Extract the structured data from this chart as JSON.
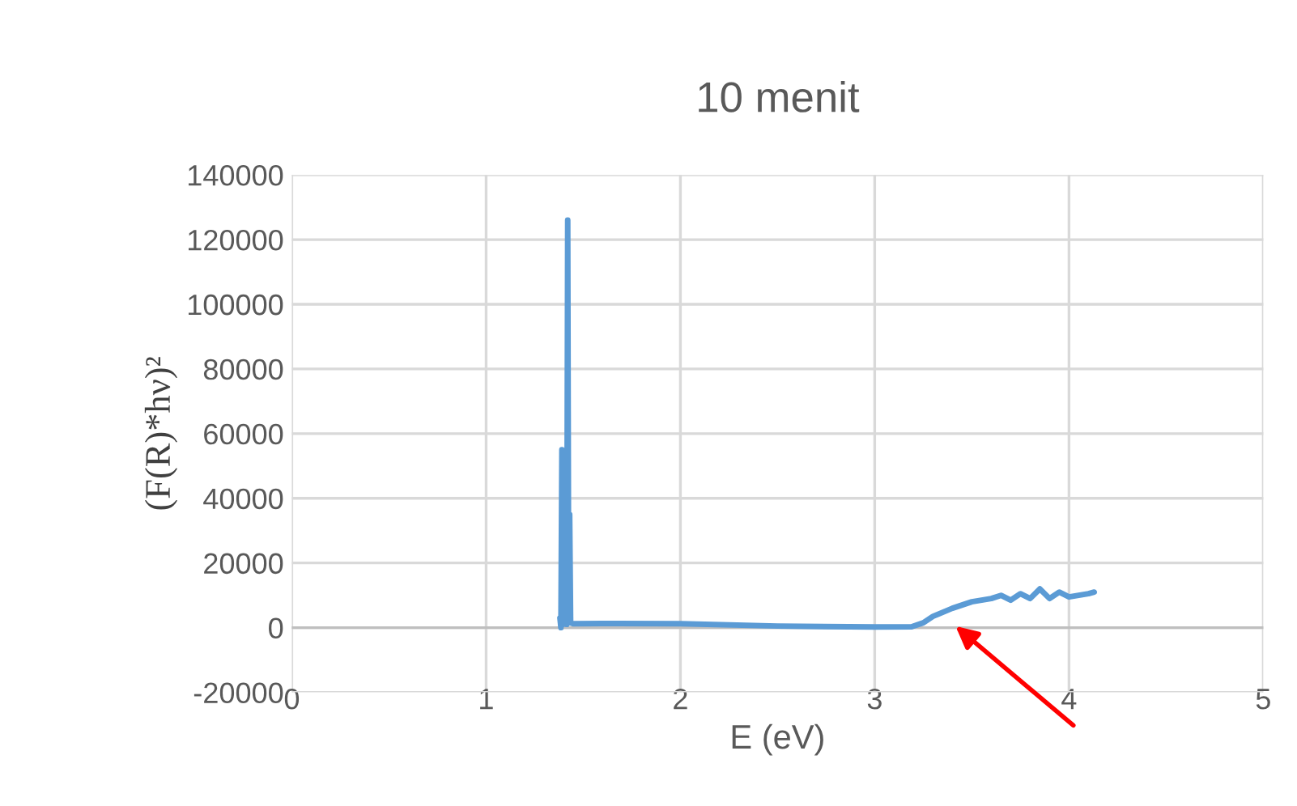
{
  "chart_data": {
    "type": "line",
    "title": "10 menit",
    "xlabel": "E (eV)",
    "ylabel": "(F(R)*hν)²",
    "xlim": [
      0,
      5
    ],
    "xticks": [
      0,
      1,
      2,
      3,
      4,
      5
    ],
    "ylim": [
      -20000,
      140000
    ],
    "yticks": [
      -20000,
      0,
      20000,
      40000,
      60000,
      80000,
      100000,
      120000,
      140000
    ],
    "grid": true,
    "legend": false,
    "marker": "none",
    "line_style": "solid",
    "series": [
      {
        "color": "#5b9bd5",
        "x": [
          1.38,
          1.385,
          1.39,
          1.395,
          1.4,
          1.405,
          1.41,
          1.415,
          1.42,
          1.425,
          1.43,
          1.435,
          1.45,
          1.6,
          2.0,
          2.5,
          3.0,
          3.19,
          3.25,
          3.3,
          3.4,
          3.5,
          3.6,
          3.65,
          3.7,
          3.75,
          3.8,
          3.85,
          3.9,
          3.95,
          4.0,
          4.05,
          4.1,
          4.13
        ],
        "values": [
          3000,
          0,
          55000,
          1000,
          40000,
          2000,
          30000,
          1000,
          126000,
          2000,
          35000,
          1500,
          1200,
          1300,
          1200,
          500,
          200,
          300,
          1500,
          3500,
          6000,
          8000,
          9000,
          10000,
          8500,
          10500,
          9000,
          12000,
          9000,
          11000,
          9500,
          10000,
          10500,
          11000
        ]
      }
    ]
  }
}
